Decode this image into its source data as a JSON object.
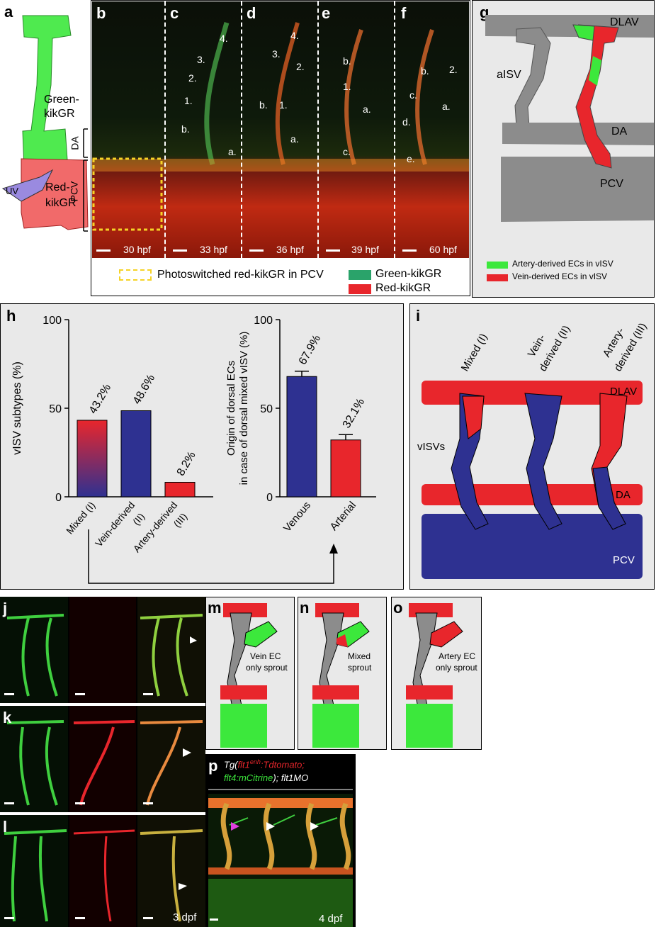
{
  "panel_labels": {
    "a": "a",
    "b": "b",
    "c": "c",
    "d": "d",
    "e": "e",
    "f": "f",
    "g": "g",
    "h": "h",
    "i": "i",
    "j": "j",
    "k": "k",
    "l": "l",
    "m": "m",
    "n": "n",
    "o": "o",
    "p": "p"
  },
  "panel_a": {
    "green_label_1": "Green-",
    "green_label_2": "kikGR",
    "red_label_1": "Red-",
    "red_label_2": "kikGR",
    "uv": "UV",
    "da": "DA",
    "pcv": "PCV"
  },
  "timelapse": {
    "times": [
      "30 hpf",
      "33 hpf",
      "36 hpf",
      "39 hpf",
      "60 hpf"
    ],
    "c_marks": [
      "4.",
      "3.",
      "2.",
      "1.",
      "b.",
      "a."
    ],
    "d_marks": [
      "4.",
      "3.",
      "2.",
      "b.",
      "1.",
      "a."
    ],
    "e_marks": [
      "b.",
      "1.",
      "a.",
      "c."
    ],
    "f_marks": [
      "b.",
      "2.",
      "c.",
      "a.",
      "d.",
      "e."
    ],
    "legend_photo": "Photoswitched red-kikGR in PCV",
    "legend_green": "Green-kikGR",
    "legend_red": "Red-kikGR"
  },
  "panel_g": {
    "dlav": "DLAV",
    "aisv": "aISV",
    "da": "DA",
    "pcv": "PCV",
    "legend_green": "Artery-derived ECs in vISV",
    "legend_red": "Vein-derived ECs in vISV"
  },
  "chart_data": [
    {
      "type": "bar",
      "categories": [
        "Mixed (I)",
        "Vein-derived (II)",
        "Artery-derived (III)"
      ],
      "values": [
        43.2,
        48.6,
        8.2
      ],
      "data_labels": [
        "43.2%",
        "48.6%",
        "8.2%"
      ],
      "ylabel": "vISV subtypes (%)",
      "ylim": [
        0,
        100
      ],
      "yticks": [
        0,
        50,
        100
      ],
      "colors": [
        "#e8262c",
        "#2e3191",
        "#e8262c"
      ]
    },
    {
      "type": "bar",
      "categories": [
        "Venous",
        "Arterial"
      ],
      "values": [
        67.9,
        32.1
      ],
      "errors": [
        3,
        3
      ],
      "data_labels": [
        "67.9%",
        "32.1%"
      ],
      "ylabel": "Origin of dorsal ECs in case of dorsal mixed vISV (%)",
      "ylabel_line1": "Origin of dorsal ECs",
      "ylabel_line2": "in case of dorsal mixed vISV (%)",
      "ylim": [
        0,
        100
      ],
      "yticks": [
        0,
        50,
        100
      ],
      "colors": [
        "#2e3191",
        "#e8262c"
      ]
    }
  ],
  "panel_h_cats": {
    "c1": "Mixed (I)",
    "c2a": "Vein-derived",
    "c2b": "(II)",
    "c3a": "Artery-derived",
    "c3b": "(III)",
    "v": "Venous",
    "ar": "Arterial"
  },
  "panel_i": {
    "col1": "Mixed (I)",
    "col2a": "Vein-",
    "col2b": "derived (II)",
    "col3a": "Artery-",
    "col3b": "derived (III)",
    "dlav": "DLAV",
    "visvs": "vISVs",
    "da": "DA",
    "pcv": "PCV"
  },
  "panel_jkl": {
    "time": "3 dpf"
  },
  "panel_mno": {
    "m1": "Vein EC",
    "m2": "only sprout",
    "n1": "Mixed",
    "n2": "sprout",
    "o1": "Artery EC",
    "o2": "only sprout"
  },
  "panel_p": {
    "t1": "Tg(",
    "t2": "flt1",
    "t2sup": "enh",
    "t3": ":Tdtomato;",
    "t4": "flt4:mCitrine",
    "t5": "); flt1MO",
    "time": "4 dpf"
  },
  "colors": {
    "red": "#e8262c",
    "blue": "#2e3191",
    "green": "#3ce83c",
    "grey": "#8c8c8c",
    "panel_bg": "#e9e9e9"
  }
}
